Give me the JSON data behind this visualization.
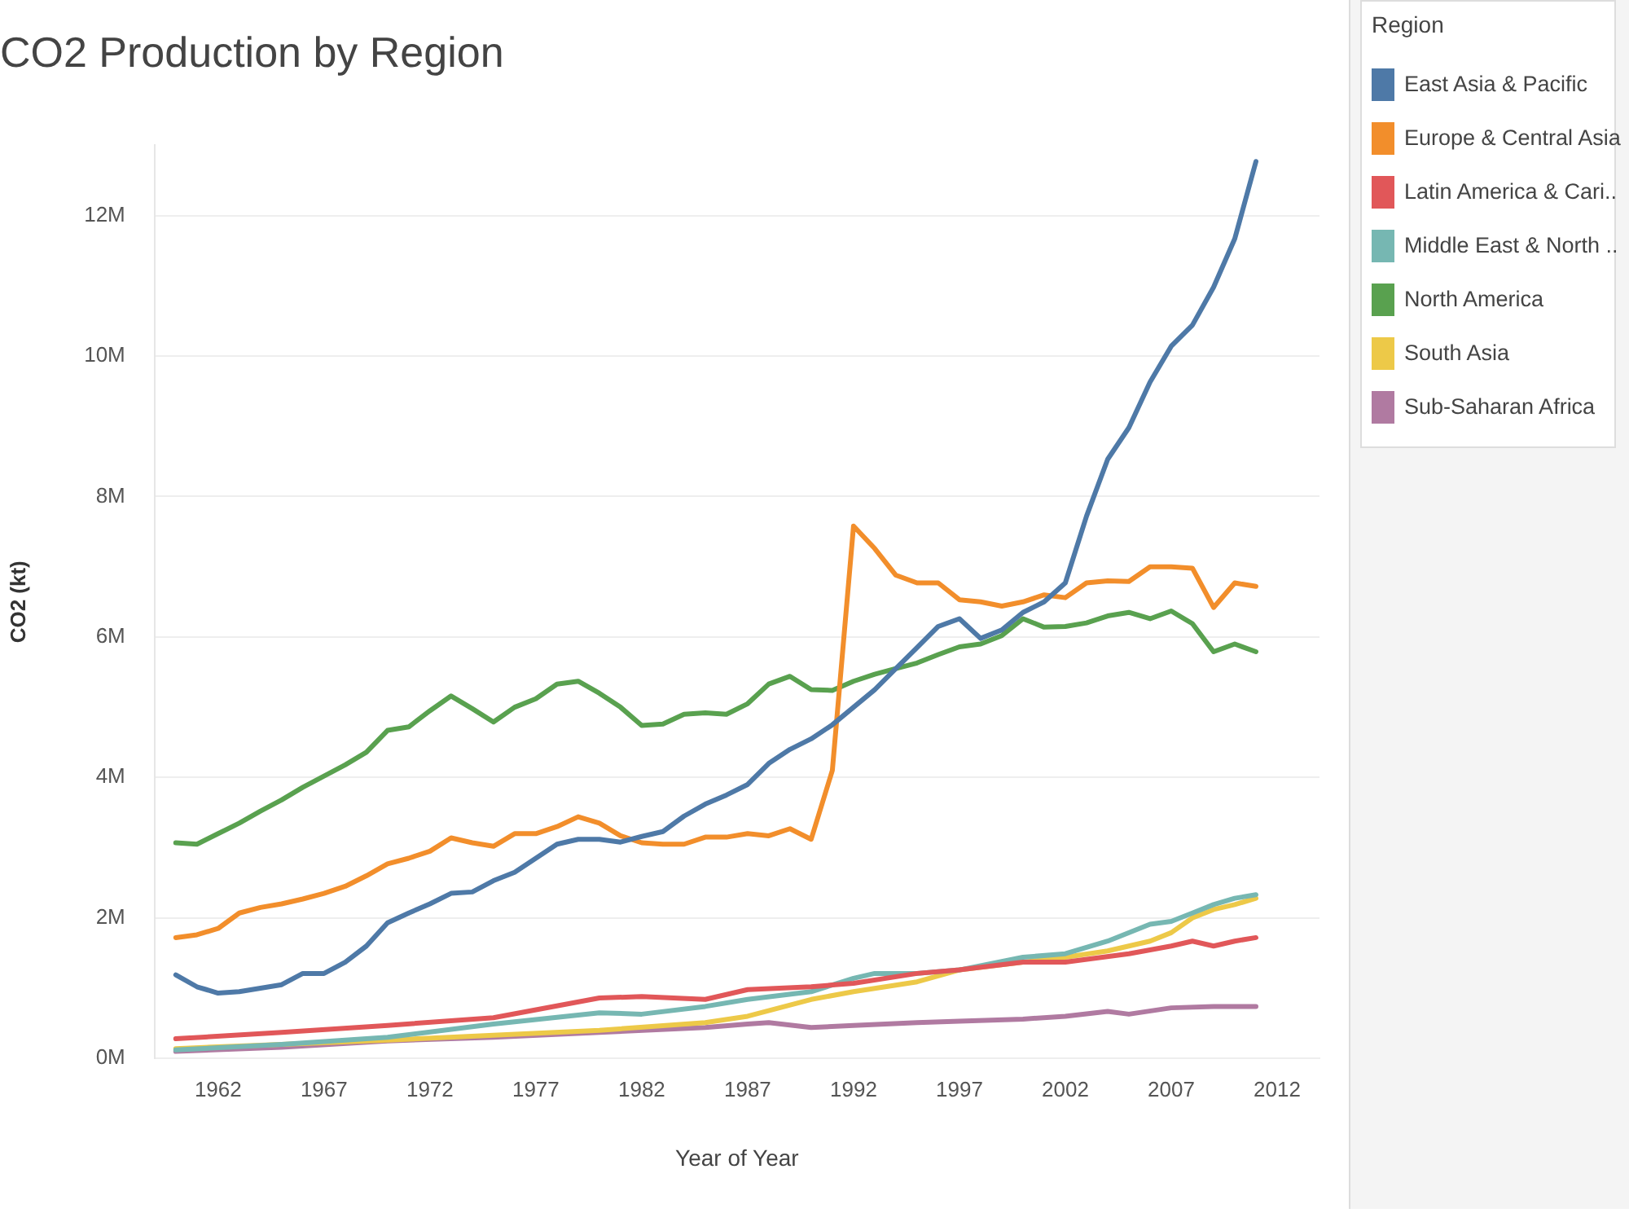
{
  "chart_data": {
    "type": "line",
    "title": "CO2 Production by Region",
    "xlabel": "Year of Year",
    "ylabel": "CO2 (kt)",
    "legend_title": "Region",
    "legend": "top right",
    "grid": "y",
    "marker": "none",
    "line_style": "solid",
    "x": [
      1960,
      1961,
      1962,
      1963,
      1964,
      1965,
      1966,
      1967,
      1968,
      1969,
      1970,
      1971,
      1972,
      1973,
      1974,
      1975,
      1976,
      1977,
      1978,
      1979,
      1980,
      1981,
      1982,
      1983,
      1984,
      1985,
      1986,
      1987,
      1988,
      1989,
      1990,
      1991,
      1992,
      1993,
      1994,
      1995,
      1996,
      1997,
      1998,
      1999,
      2000,
      2001,
      2002,
      2003,
      2004,
      2005,
      2006,
      2007,
      2008,
      2009,
      2010,
      2011
    ],
    "xlim": [
      1959,
      2014
    ],
    "xticks": [
      1962,
      1967,
      1972,
      1977,
      1982,
      1987,
      1992,
      1997,
      2002,
      2007,
      2012
    ],
    "ylim": [
      0,
      13000000
    ],
    "yticks": [
      {
        "value": 0,
        "label": "0M"
      },
      {
        "value": 2000000,
        "label": "2M"
      },
      {
        "value": 4000000,
        "label": "4M"
      },
      {
        "value": 6000000,
        "label": "6M"
      },
      {
        "value": 8000000,
        "label": "8M"
      },
      {
        "value": 10000000,
        "label": "10M"
      },
      {
        "value": 12000000,
        "label": "12M"
      }
    ],
    "series": [
      {
        "name": "East Asia & Pacific",
        "color": "#4e79a7",
        "values": [
          1190000,
          1020000,
          930000,
          950000,
          1000000,
          1050000,
          1210000,
          1210000,
          1370000,
          1600000,
          1930000,
          2070000,
          2200000,
          2350000,
          2370000,
          2530000,
          2650000,
          2850000,
          3050000,
          3120000,
          3120000,
          3080000,
          3160000,
          3230000,
          3450000,
          3620000,
          3750000,
          3900000,
          4200000,
          4400000,
          4550000,
          4750000,
          5000000,
          5250000,
          5550000,
          5850000,
          6150000,
          6260000,
          5980000,
          6100000,
          6350000,
          6500000,
          6770000,
          7720000,
          8530000,
          8980000,
          9630000,
          10140000,
          10440000,
          10980000,
          11670000,
          12770000
        ]
      },
      {
        "name": "Europe & Central Asia",
        "color": "#f28e2b",
        "values": [
          1720000,
          1760000,
          1850000,
          2070000,
          2150000,
          2200000,
          2270000,
          2350000,
          2450000,
          2600000,
          2770000,
          2850000,
          2950000,
          3140000,
          3070000,
          3020000,
          3200000,
          3200000,
          3300000,
          3440000,
          3350000,
          3170000,
          3070000,
          3050000,
          3050000,
          3150000,
          3150000,
          3200000,
          3170000,
          3270000,
          3120000,
          4100000,
          7580000,
          7260000,
          6880000,
          6770000,
          6770000,
          6530000,
          6500000,
          6440000,
          6500000,
          6600000,
          6560000,
          6770000,
          6800000,
          6790000,
          7000000,
          7000000,
          6980000,
          6420000,
          6770000,
          6720000
        ]
      },
      {
        "name": "Latin America & Cari..",
        "color": "#e15759",
        "x": [
          1960,
          1965,
          1970,
          1975,
          1980,
          1982,
          1985,
          1987,
          1990,
          1992,
          1995,
          1997,
          2000,
          2002,
          2005,
          2007,
          2008,
          2009,
          2010,
          2011
        ],
        "values": [
          280000,
          370000,
          470000,
          580000,
          860000,
          880000,
          840000,
          980000,
          1020000,
          1070000,
          1210000,
          1260000,
          1370000,
          1370000,
          1490000,
          1600000,
          1670000,
          1600000,
          1670000,
          1720000
        ]
      },
      {
        "name": "Middle East & North ..",
        "color": "#76b7b2",
        "x": [
          1960,
          1965,
          1970,
          1975,
          1980,
          1982,
          1985,
          1987,
          1990,
          1992,
          1993,
          1995,
          1997,
          2000,
          2002,
          2004,
          2006,
          2007,
          2008,
          2009,
          2010,
          2011
        ],
        "values": [
          120000,
          200000,
          300000,
          490000,
          650000,
          630000,
          740000,
          840000,
          950000,
          1140000,
          1210000,
          1210000,
          1260000,
          1440000,
          1490000,
          1670000,
          1910000,
          1950000,
          2070000,
          2190000,
          2280000,
          2330000
        ]
      },
      {
        "name": "North America",
        "color": "#59a14f",
        "values": [
          3070000,
          3050000,
          3200000,
          3350000,
          3520000,
          3680000,
          3860000,
          4020000,
          4180000,
          4360000,
          4670000,
          4720000,
          4950000,
          5160000,
          4980000,
          4790000,
          5000000,
          5120000,
          5330000,
          5370000,
          5200000,
          5000000,
          4740000,
          4760000,
          4900000,
          4920000,
          4900000,
          5050000,
          5330000,
          5440000,
          5250000,
          5240000,
          5370000,
          5470000,
          5550000,
          5630000,
          5750000,
          5860000,
          5900000,
          6020000,
          6260000,
          6140000,
          6150000,
          6200000,
          6300000,
          6350000,
          6260000,
          6370000,
          6190000,
          5790000,
          5900000,
          5790000
        ]
      },
      {
        "name": "South Asia",
        "color": "#edc948",
        "x": [
          1960,
          1965,
          1970,
          1975,
          1980,
          1985,
          1987,
          1990,
          1992,
          1995,
          1997,
          2000,
          2002,
          2004,
          2006,
          2007,
          2008,
          2009,
          2010,
          2011
        ],
        "values": [
          140000,
          200000,
          260000,
          330000,
          400000,
          510000,
          600000,
          840000,
          950000,
          1090000,
          1260000,
          1370000,
          1440000,
          1530000,
          1670000,
          1790000,
          2000000,
          2120000,
          2190000,
          2280000
        ]
      },
      {
        "name": "Sub-Saharan Africa",
        "color": "#b07aa1",
        "x": [
          1960,
          1965,
          1970,
          1975,
          1980,
          1985,
          1987,
          1988,
          1990,
          1992,
          1995,
          1997,
          2000,
          2002,
          2004,
          2005,
          2007,
          2009,
          2011
        ],
        "values": [
          100000,
          160000,
          250000,
          300000,
          370000,
          440000,
          490000,
          510000,
          440000,
          470000,
          510000,
          530000,
          560000,
          600000,
          670000,
          630000,
          720000,
          740000,
          740000
        ]
      }
    ]
  }
}
